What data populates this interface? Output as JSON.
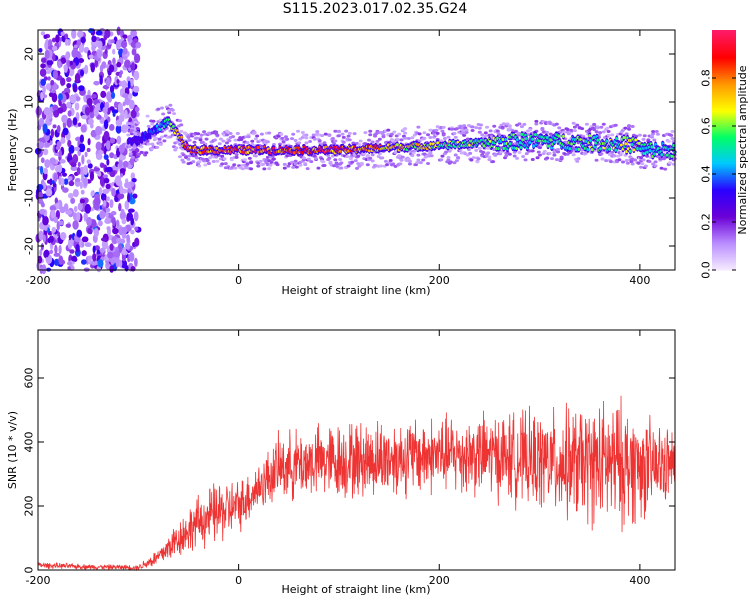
{
  "title": "S115.2023.017.02.35.G24",
  "colors": {
    "snr_line": "#ee3333",
    "colormap": [
      "#f4e9ff",
      "#b98cff",
      "#6b00d6",
      "#2a00ff",
      "#00c8ff",
      "#00ff66",
      "#ffff00",
      "#ff9900",
      "#ff0000",
      "#ff1a66"
    ]
  },
  "chart_data": [
    {
      "type": "heatmap",
      "name": "spectrogram",
      "xlabel": "Height of straight line (km)",
      "ylabel": "Frequency (Hz)",
      "xlim": [
        -200,
        435
      ],
      "ylim": [
        -25,
        25
      ],
      "xticks": [
        -200,
        0,
        200,
        400
      ],
      "yticks": [
        -20,
        -10,
        0,
        10,
        20
      ],
      "colorbar": {
        "label": "Normalized spectral amplitude",
        "range": [
          0,
          1
        ],
        "ticks": [
          0.0,
          0.2,
          0.4,
          0.6,
          0.8
        ]
      },
      "description_points": [
        {
          "height_km": -200,
          "freq_hz": 0,
          "amplitude": 0.2
        },
        {
          "height_km": -100,
          "freq_hz": 2,
          "amplitude": 0.25
        },
        {
          "height_km": -70,
          "freq_hz": 6,
          "amplitude": 0.5
        },
        {
          "height_km": -50,
          "freq_hz": 0,
          "amplitude": 0.85
        },
        {
          "height_km": 100,
          "freq_hz": 0,
          "amplitude": 0.85
        },
        {
          "height_km": 200,
          "freq_hz": 1,
          "amplitude": 0.6
        },
        {
          "height_km": 300,
          "freq_hz": 2,
          "amplitude": 0.5
        },
        {
          "height_km": 400,
          "freq_hz": 1,
          "amplitude": 0.6
        }
      ]
    },
    {
      "type": "line",
      "name": "snr",
      "xlabel": "Height of straight line (km)",
      "ylabel": "SNR (10 * v/v)",
      "xlim": [
        -200,
        435
      ],
      "ylim": [
        0,
        750
      ],
      "xticks": [
        -200,
        0,
        200,
        400
      ],
      "yticks": [
        0,
        200,
        400,
        600
      ],
      "envelope": {
        "x": [
          -200,
          -150,
          -100,
          -80,
          -60,
          -40,
          -20,
          0,
          20,
          40,
          60,
          80,
          100,
          150,
          200,
          250,
          300,
          340,
          380,
          410,
          435
        ],
        "mean": [
          15,
          10,
          8,
          40,
          100,
          150,
          180,
          200,
          260,
          320,
          330,
          340,
          340,
          350,
          360,
          360,
          340,
          330,
          330,
          320,
          330
        ],
        "spread": [
          10,
          8,
          8,
          30,
          60,
          80,
          100,
          80,
          80,
          100,
          110,
          110,
          120,
          120,
          120,
          130,
          150,
          180,
          200,
          150,
          100
        ]
      }
    }
  ]
}
